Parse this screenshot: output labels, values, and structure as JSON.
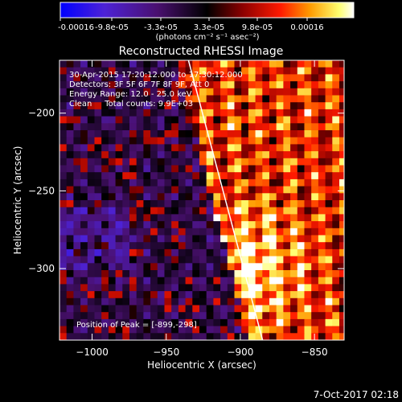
{
  "colorbar": {
    "tick_labels": [
      "-0.00016",
      "-9.8e-05",
      "-3.3e-05",
      "3.3e-05",
      "9.8e-05",
      "0.00016"
    ],
    "units_label": "(photons cm⁻² s⁻¹ asec⁻²)",
    "colors": [
      "#0000ff",
      "#5520d0",
      "#4a1070",
      "#000000",
      "#8a0000",
      "#ff1a00",
      "#ff9a00",
      "#ffff70",
      "#ffffff"
    ]
  },
  "annotations": {
    "time": "30-Apr-2015 17:20:12.000 to 17:30:12.000",
    "detectors": "Detectors: 3F 5F 6F 7F 8F 9F, Att 0",
    "energy": "Energy Range: 12.0 - 25.0 keV",
    "clean": "Clean     Total counts: 9.9E+03",
    "peak": "Position of Peak = [-899,-298]"
  },
  "footer": {
    "date": "7-Oct-2017 02:18"
  },
  "chart_data": {
    "type": "heatmap",
    "title": "Reconstructed RHESSI Image",
    "xlabel": "Heliocentric X (arcsec)",
    "ylabel": "Heliocentric Y (arcsec)",
    "xlim": [
      -1022,
      -830
    ],
    "ylim": [
      -346,
      -166
    ],
    "x_ticks": [
      -1000,
      -950,
      -900,
      -850
    ],
    "x_tick_labels": [
      "−1000",
      "−950",
      "−900",
      "−850"
    ],
    "y_ticks": [
      -200,
      -250,
      -300
    ],
    "y_tick_labels": [
      "−200",
      "−250",
      "−300"
    ],
    "peak": [
      -899,
      -298
    ],
    "limb_line": [
      [
        -935,
        -166
      ],
      [
        -885,
        -346
      ]
    ]
  }
}
